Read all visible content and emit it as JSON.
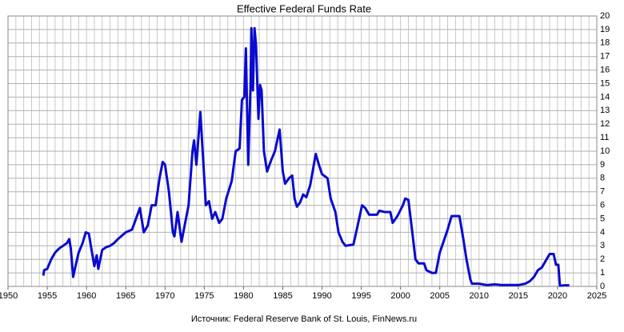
{
  "chart_data": {
    "type": "line",
    "title": "Effective Federal Funds Rate",
    "source": "Источник: Federal Reserve Bank of St. Louis, FinNews.ru",
    "color": "#0a0ad0",
    "x": [
      1954.5,
      1954.6,
      1955,
      1955.5,
      1956,
      1956.5,
      1957,
      1957.5,
      1957.8,
      1958,
      1958.3,
      1958.6,
      1959,
      1959.5,
      1959.9,
      1960.3,
      1960.7,
      1961,
      1961.3,
      1961.5,
      1962,
      1962.5,
      1963,
      1963.5,
      1964,
      1965,
      1965.8,
      1966.3,
      1966.8,
      1967.3,
      1967.8,
      1968.3,
      1968.8,
      1969.3,
      1969.7,
      1970,
      1970.5,
      1971,
      1971.2,
      1971.6,
      1971.9,
      1972.1,
      1972.5,
      1973,
      1973.5,
      1973.7,
      1974,
      1974.5,
      1974.9,
      1975.2,
      1975.6,
      1976,
      1976.4,
      1976.9,
      1977.3,
      1977.8,
      1978.5,
      1979,
      1979.5,
      1979.8,
      1980.1,
      1980.3,
      1980.6,
      1980.9,
      1981,
      1981.2,
      1981.4,
      1981.6,
      1981.9,
      1982.1,
      1982.3,
      1982.6,
      1983,
      1983.5,
      1984,
      1984.6,
      1985,
      1985.3,
      1985.8,
      1986.2,
      1986.5,
      1986.8,
      1987.2,
      1987.6,
      1988,
      1988.5,
      1989.2,
      1989.6,
      1990,
      1990.7,
      1991.1,
      1991.7,
      1992.1,
      1992.6,
      1993,
      1994,
      1994.5,
      1995.1,
      1995.5,
      1996,
      1997,
      1997.3,
      1998,
      1998.7,
      1999,
      1999.6,
      2000.3,
      2000.6,
      2001,
      2001.5,
      2001.9,
      2002.3,
      2003,
      2003.3,
      2004,
      2004.5,
      2005,
      2006,
      2006.5,
      2007.5,
      2008,
      2008.4,
      2008.9,
      2009.1,
      2010,
      2011,
      2012,
      2013,
      2014,
      2015,
      2015.9,
      2016.5,
      2017,
      2017.5,
      2018,
      2018.5,
      2019,
      2019.5,
      2019.8,
      2020.1,
      2020.3,
      2021,
      2021.5
    ],
    "values": [
      0.8,
      1.2,
      1.3,
      2.0,
      2.5,
      2.8,
      3.0,
      3.2,
      3.5,
      2.8,
      0.7,
      1.5,
      2.5,
      3.2,
      4.0,
      3.9,
      2.5,
      1.5,
      2.3,
      1.3,
      2.7,
      2.9,
      3.0,
      3.2,
      3.5,
      4.0,
      4.2,
      5.0,
      5.8,
      4.0,
      4.5,
      6.0,
      6.0,
      8.0,
      9.2,
      9.0,
      7.0,
      4.0,
      3.7,
      5.5,
      4.2,
      3.3,
      4.5,
      6.0,
      10.0,
      10.8,
      9.0,
      12.9,
      9.0,
      6.0,
      6.3,
      5.0,
      5.5,
      4.7,
      5.0,
      6.5,
      7.8,
      10.0,
      10.2,
      13.8,
      14.0,
      17.6,
      9.0,
      15.0,
      19.1,
      14.5,
      19.1,
      17.8,
      12.4,
      14.9,
      14.5,
      10.0,
      8.5,
      9.3,
      10.0,
      11.6,
      8.5,
      7.6,
      8.0,
      8.2,
      6.5,
      5.9,
      6.2,
      6.8,
      6.6,
      7.5,
      9.8,
      9.0,
      8.3,
      8.0,
      6.5,
      5.5,
      4.0,
      3.3,
      3.0,
      3.1,
      4.4,
      6.0,
      5.8,
      5.3,
      5.3,
      5.6,
      5.5,
      5.5,
      4.7,
      5.2,
      6.0,
      6.5,
      6.4,
      4.0,
      2.0,
      1.7,
      1.7,
      1.2,
      1.0,
      1.0,
      2.5,
      4.2,
      5.2,
      5.2,
      3.5,
      2.0,
      0.5,
      0.2,
      0.2,
      0.1,
      0.15,
      0.1,
      0.1,
      0.1,
      0.2,
      0.4,
      0.7,
      1.2,
      1.4,
      1.9,
      2.4,
      2.4,
      1.6,
      1.6,
      0.05,
      0.08,
      0.08
    ],
    "xlim": [
      1950,
      2025
    ],
    "xticks": [
      1950,
      1955,
      1960,
      1965,
      1970,
      1975,
      1980,
      1985,
      1990,
      1995,
      2000,
      2005,
      2010,
      2015,
      2020,
      2025
    ],
    "ylim": [
      0,
      20
    ],
    "yticks": [
      0,
      1,
      2,
      3,
      4,
      5,
      6,
      7,
      8,
      9,
      10,
      11,
      12,
      13,
      14,
      15,
      16,
      17,
      18,
      19,
      20
    ],
    "x_grid_step": 1,
    "grid": true
  }
}
